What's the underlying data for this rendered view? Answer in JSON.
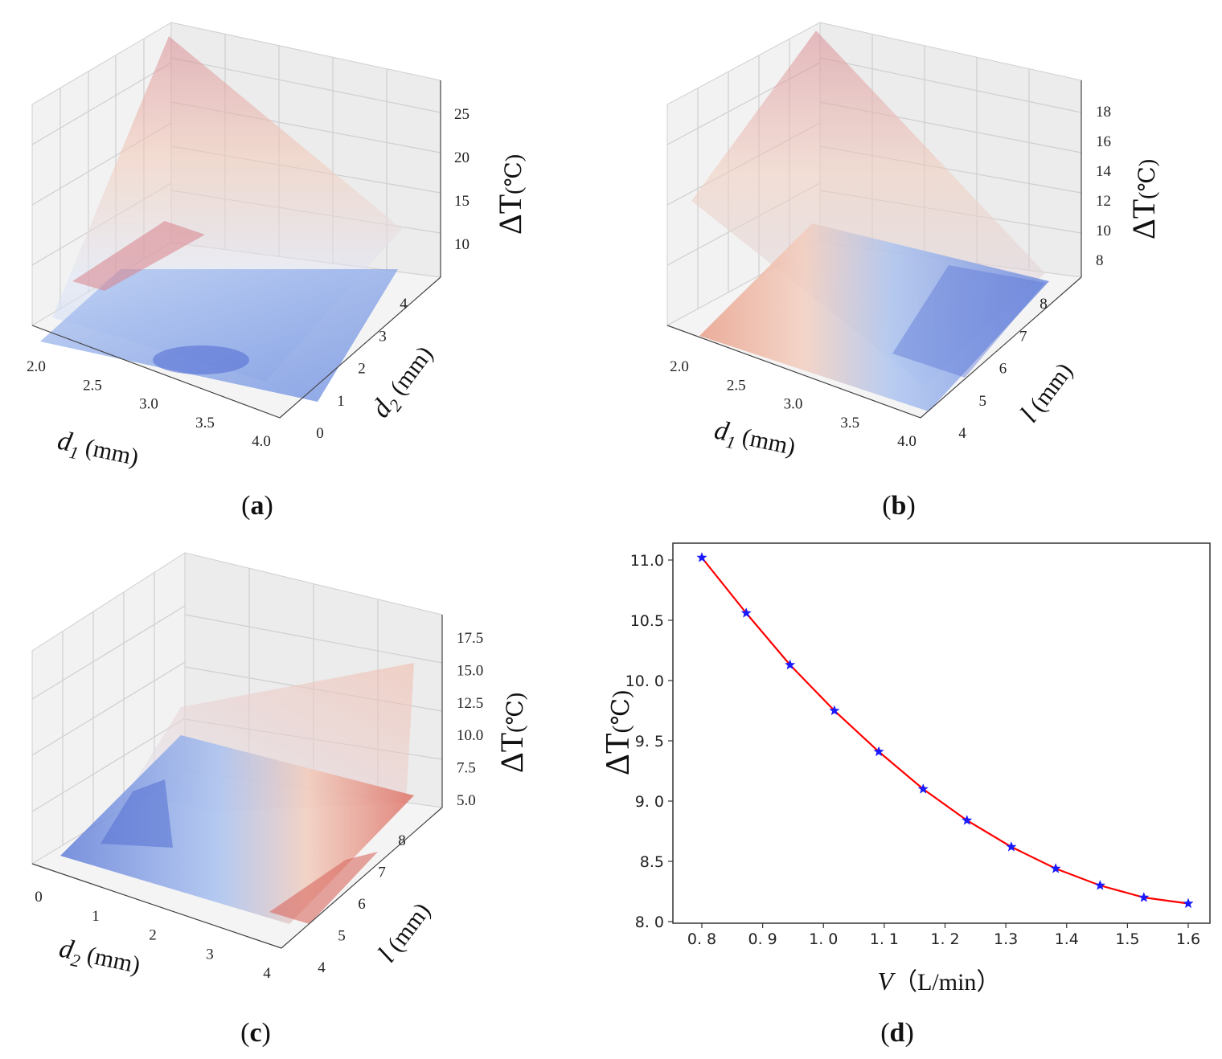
{
  "chart_data": [
    {
      "id": "a",
      "type": "surface3d",
      "caption": "a",
      "xlabel": "d1 (mm)",
      "ylabel": "d2 (mm)",
      "zlabel": "ΔT (℃)",
      "xlabel_base": "d",
      "xlabel_sub": "1",
      "xlabel_unit": " (mm)",
      "ylabel_base": "d",
      "ylabel_sub": "2",
      "ylabel_unit": " (mm)",
      "zlabel_base": "ΔT",
      "zlabel_unit": "(℃)",
      "x_ticks": [
        "2.0",
        "2.5",
        "3.0",
        "3.5",
        "4.0"
      ],
      "y_ticks": [
        "0",
        "1",
        "2",
        "3",
        "4"
      ],
      "z_ticks": [
        "10",
        "15",
        "20",
        "25"
      ],
      "colormap": "coolwarm"
    },
    {
      "id": "b",
      "type": "surface3d",
      "caption": "b",
      "xlabel": "d1 (mm)",
      "ylabel": "l (mm)",
      "zlabel": "ΔT (℃)",
      "xlabel_base": "d",
      "xlabel_sub": "1",
      "xlabel_unit": " (mm)",
      "ylabel_base": "l",
      "ylabel_sub": "",
      "ylabel_unit": " (mm)",
      "zlabel_base": "ΔT",
      "zlabel_unit": "(℃)",
      "x_ticks": [
        "2.0",
        "2.5",
        "3.0",
        "3.5",
        "4.0"
      ],
      "y_ticks": [
        "4",
        "5",
        "6",
        "7",
        "8"
      ],
      "z_ticks": [
        "8",
        "10",
        "12",
        "14",
        "16",
        "18"
      ],
      "colormap": "coolwarm"
    },
    {
      "id": "c",
      "type": "surface3d",
      "caption": "c",
      "xlabel": "d2 (mm)",
      "ylabel": "l (mm)",
      "zlabel": "ΔT (℃)",
      "xlabel_base": "d",
      "xlabel_sub": "2",
      "xlabel_unit": " (mm)",
      "ylabel_base": "l",
      "ylabel_sub": "",
      "ylabel_unit": " (mm)",
      "zlabel_base": "ΔT",
      "zlabel_unit": "(℃)",
      "x_ticks": [
        "0",
        "1",
        "2",
        "3",
        "4"
      ],
      "y_ticks": [
        "4",
        "5",
        "6",
        "7",
        "8"
      ],
      "z_ticks": [
        "5.0",
        "7.5",
        "10.0",
        "12.5",
        "15.0",
        "17.5"
      ],
      "colormap": "coolwarm"
    },
    {
      "id": "d",
      "type": "line",
      "caption": "d",
      "xlabel": "V（L/min）",
      "xlabel_var": "V",
      "xlabel_unit": "（L/min）",
      "ylabel": "ΔT (℃)",
      "ylabel_base": "ΔT",
      "ylabel_unit": "(℃)",
      "xlim": [
        0.8,
        1.6
      ],
      "ylim": [
        8.0,
        11.0
      ],
      "x_ticks": [
        0.8,
        0.9,
        1.0,
        1.1,
        1.2,
        1.3,
        1.4,
        1.5,
        1.6
      ],
      "x_tick_labels": [
        "0. 8",
        "0. 9",
        "1. 0",
        "1. 1",
        "1. 2",
        "1.3",
        "1.4",
        "1.5",
        "1.6"
      ],
      "y_ticks": [
        8.0,
        8.5,
        9.0,
        9.5,
        10.0,
        10.5,
        11.0
      ],
      "y_tick_labels": [
        "8. 0",
        "8.5",
        "9. 0",
        "9. 5",
        "10. 0",
        "10.5",
        "11.0"
      ],
      "series": [
        {
          "name": "ΔT",
          "line_color": "#ff0000",
          "marker": "star",
          "marker_color": "#1a1aff",
          "x": [
            0.8,
            0.873,
            0.945,
            1.018,
            1.091,
            1.164,
            1.236,
            1.309,
            1.382,
            1.455,
            1.527,
            1.6
          ],
          "y": [
            11.02,
            10.56,
            10.13,
            9.75,
            9.41,
            9.1,
            8.84,
            8.62,
            8.44,
            8.3,
            8.2,
            8.15
          ]
        }
      ]
    }
  ]
}
